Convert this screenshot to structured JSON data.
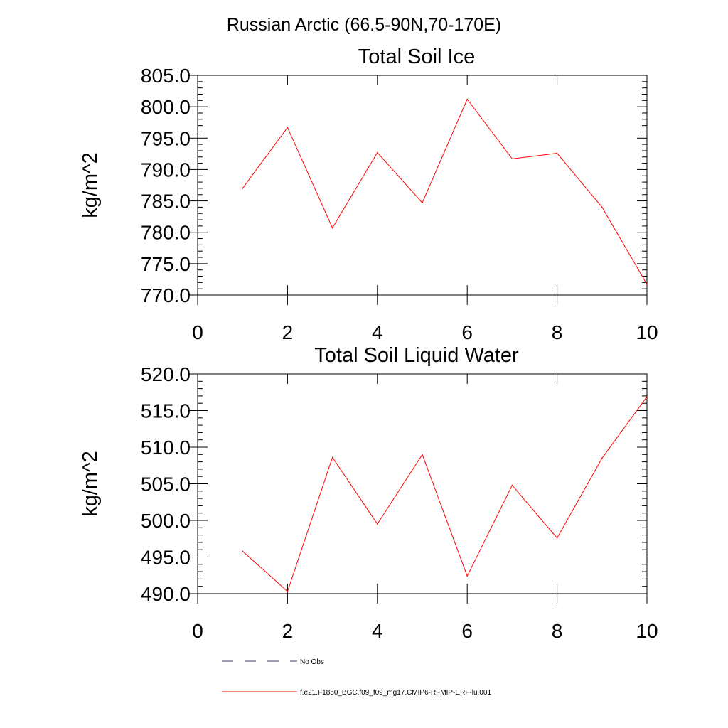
{
  "figure": {
    "main_title": "Russian Arctic (66.5-90N,70-170E)"
  },
  "colors": {
    "axis": "#000000",
    "series_line": "#ff0000",
    "obs_line": "#3a3a8c"
  },
  "chart_data": [
    {
      "type": "line",
      "title": "Total Soil Ice",
      "xlabel": "",
      "ylabel": "kg/m^2",
      "xlim": [
        0,
        10
      ],
      "ylim": [
        770,
        805
      ],
      "x_ticks": [
        "0",
        "2",
        "4",
        "6",
        "8",
        "10"
      ],
      "y_ticks": [
        "770.0",
        "775.0",
        "780.0",
        "785.0",
        "790.0",
        "795.0",
        "800.0",
        "805.0"
      ],
      "grid": false,
      "series": [
        {
          "name": "f.e21.F1850_BGC.f09_f09_mg17.CMIP6-RFMIP-ERF-lu.001",
          "x": [
            1,
            2,
            3,
            4,
            5,
            6,
            7,
            8,
            9,
            10
          ],
          "values": [
            787.0,
            796.7,
            780.7,
            792.7,
            784.7,
            801.2,
            791.7,
            792.6,
            784.0,
            771.7
          ]
        }
      ]
    },
    {
      "type": "line",
      "title": "Total Soil Liquid Water",
      "xlabel": "",
      "ylabel": "kg/m^2",
      "xlim": [
        0,
        10
      ],
      "ylim": [
        490,
        520
      ],
      "x_ticks": [
        "0",
        "2",
        "4",
        "6",
        "8",
        "10"
      ],
      "y_ticks": [
        "490.0",
        "495.0",
        "500.0",
        "505.0",
        "510.0",
        "515.0",
        "520.0"
      ],
      "grid": false,
      "series": [
        {
          "name": "f.e21.F1850_BGC.f09_f09_mg17.CMIP6-RFMIP-ERF-lu.001",
          "x": [
            1,
            2,
            3,
            4,
            5,
            6,
            7,
            8,
            9,
            10
          ],
          "values": [
            495.8,
            490.3,
            508.6,
            499.5,
            509.0,
            492.4,
            504.8,
            497.6,
            508.5,
            516.9
          ]
        }
      ]
    }
  ],
  "legend": {
    "placement": "bottom",
    "items": [
      {
        "label": "No Obs",
        "style": "dashed"
      },
      {
        "label": "f.e21.F1850_BGC.f09_f09_mg17.CMIP6-RFMIP-ERF-lu.001",
        "style": "solid"
      }
    ]
  }
}
